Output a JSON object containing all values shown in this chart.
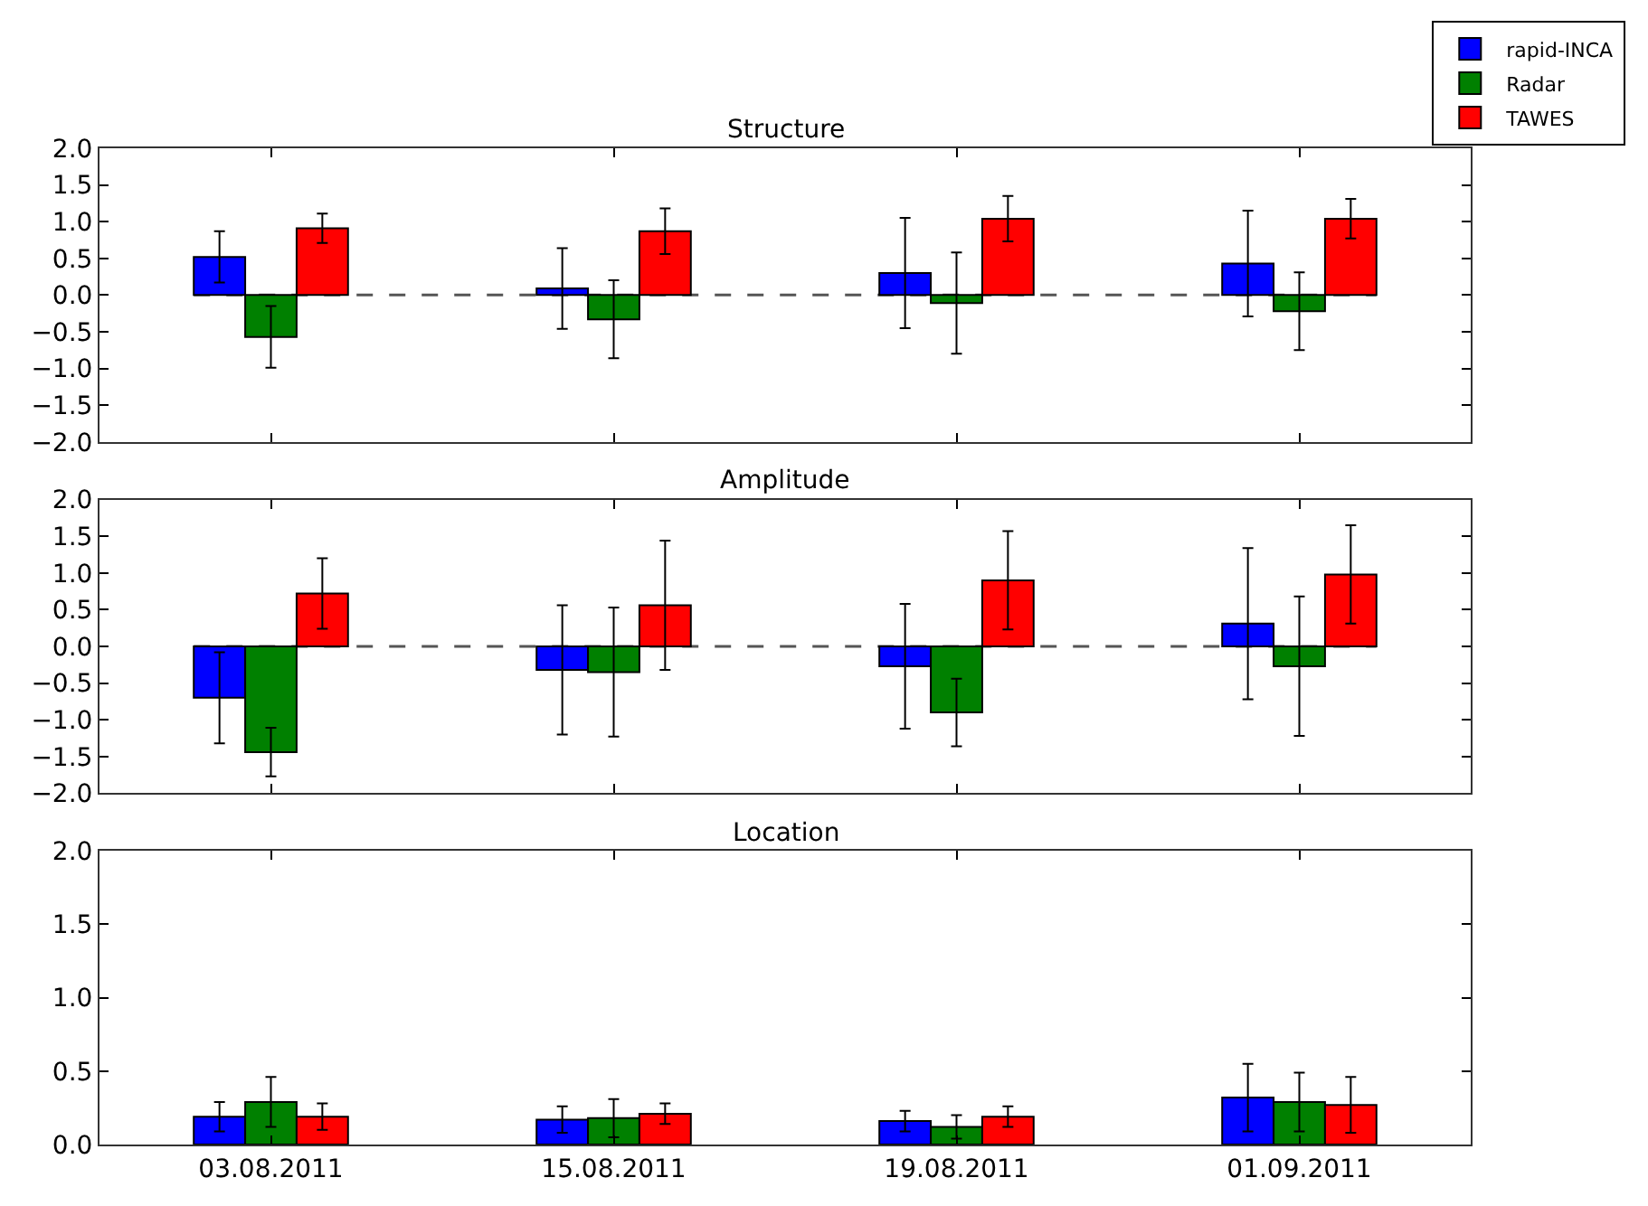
{
  "chart_data": [
    {
      "type": "bar",
      "title": "Structure",
      "categories": [
        "03.08.2011",
        "15.08.2011",
        "19.08.2011",
        "01.09.2011"
      ],
      "series": [
        {
          "name": "rapid-INCA",
          "color": "#0000ff",
          "values": [
            0.52,
            0.09,
            0.3,
            0.43
          ],
          "errors": [
            0.35,
            0.55,
            0.75,
            0.72
          ]
        },
        {
          "name": "Radar",
          "color": "#008000",
          "values": [
            -0.57,
            -0.33,
            -0.11,
            -0.22
          ],
          "errors": [
            0.42,
            0.53,
            0.69,
            0.53
          ]
        },
        {
          "name": "TAWES",
          "color": "#ff0000",
          "values": [
            0.91,
            0.87,
            1.04,
            1.04
          ],
          "errors": [
            0.2,
            0.31,
            0.31,
            0.27
          ]
        }
      ],
      "ylim": [
        -2,
        2
      ],
      "yticks": [
        {
          "value": -2,
          "label": "−2.0"
        },
        {
          "value": -1.5,
          "label": "−1.5"
        },
        {
          "value": -1,
          "label": "−1.0"
        },
        {
          "value": -0.5,
          "label": "−0.5"
        },
        {
          "value": 0,
          "label": "0.0"
        },
        {
          "value": 0.5,
          "label": "0.5"
        },
        {
          "value": 1,
          "label": "1.0"
        },
        {
          "value": 1.5,
          "label": "1.5"
        },
        {
          "value": 2,
          "label": "2.0"
        }
      ],
      "ref_lines": [
        {
          "axis": "y",
          "value": 0,
          "line_style": "dashed",
          "color": "#555555"
        }
      ],
      "legend": "top right",
      "grid": false,
      "tick_labels": "y"
    },
    {
      "type": "bar",
      "title": "Amplitude",
      "categories": [
        "03.08.2011",
        "15.08.2011",
        "19.08.2011",
        "01.09.2011"
      ],
      "series": [
        {
          "color": "#0000ff",
          "values": [
            -0.7,
            -0.32,
            -0.27,
            0.31
          ],
          "errors": [
            0.62,
            0.88,
            0.85,
            1.03
          ]
        },
        {
          "color": "#008000",
          "values": [
            -1.44,
            -0.35,
            -0.9,
            -0.27
          ],
          "errors": [
            0.33,
            0.88,
            0.46,
            0.95
          ]
        },
        {
          "color": "#ff0000",
          "values": [
            0.72,
            0.56,
            0.9,
            0.98
          ],
          "errors": [
            0.48,
            0.88,
            0.67,
            0.67
          ]
        }
      ],
      "ylim": [
        -2,
        2
      ],
      "yticks": [
        {
          "value": -2,
          "label": "−2.0"
        },
        {
          "value": -1.5,
          "label": "−1.5"
        },
        {
          "value": -1,
          "label": "−1.0"
        },
        {
          "value": -0.5,
          "label": "−0.5"
        },
        {
          "value": 0,
          "label": "0.0"
        },
        {
          "value": 0.5,
          "label": "0.5"
        },
        {
          "value": 1,
          "label": "1.0"
        },
        {
          "value": 1.5,
          "label": "1.5"
        },
        {
          "value": 2,
          "label": "2.0"
        }
      ],
      "ref_lines": [
        {
          "axis": "y",
          "value": 0,
          "line_style": "dashed",
          "color": "#555555"
        }
      ],
      "grid": false,
      "tick_labels": "y"
    },
    {
      "type": "bar",
      "title": "Location",
      "categories": [
        "03.08.2011",
        "15.08.2011",
        "19.08.2011",
        "01.09.2011"
      ],
      "series": [
        {
          "color": "#0000ff",
          "values": [
            0.19,
            0.17,
            0.16,
            0.32
          ],
          "errors": [
            0.1,
            0.09,
            0.07,
            0.23
          ]
        },
        {
          "color": "#008000",
          "values": [
            0.29,
            0.18,
            0.12,
            0.29
          ],
          "errors": [
            0.17,
            0.13,
            0.08,
            0.2
          ]
        },
        {
          "color": "#ff0000",
          "values": [
            0.19,
            0.21,
            0.19,
            0.27
          ],
          "errors": [
            0.09,
            0.07,
            0.07,
            0.19
          ]
        }
      ],
      "ylim": [
        0,
        2
      ],
      "yticks": [
        {
          "value": 0,
          "label": "0.0"
        },
        {
          "value": 0.5,
          "label": "0.5"
        },
        {
          "value": 1,
          "label": "1.0"
        },
        {
          "value": 1.5,
          "label": "1.5"
        },
        {
          "value": 2,
          "label": "2.0"
        }
      ],
      "grid": false
    }
  ]
}
